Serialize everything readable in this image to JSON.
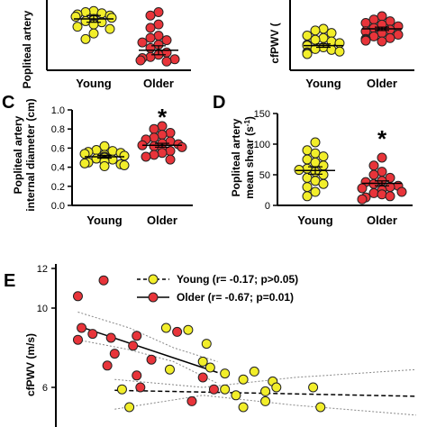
{
  "colors": {
    "young": "#f2ee2a",
    "older": "#e8343a",
    "stroke": "#222222",
    "ci": "#888888"
  },
  "chart_data": [
    {
      "type": "scatter",
      "panel": "A",
      "ylabel": "Popliteal artery",
      "categories": [
        "Young",
        "Older"
      ],
      "yrange_data": [
        1.2,
        6.5
      ],
      "series": [
        {
          "name": "Young",
          "values": [
            6.0,
            5.9,
            5.8,
            5.7,
            5.6,
            5.5,
            5.4,
            5.3,
            5.2,
            5.1,
            5.0,
            4.9,
            4.8,
            4.6,
            4.4,
            4.0,
            3.5
          ]
        },
        {
          "name": "Older",
          "values": [
            5.9,
            5.6,
            4.8,
            4.5,
            3.8,
            3.6,
            3.4,
            3.2,
            3.0,
            2.7,
            2.3,
            2.1,
            1.9,
            1.8,
            1.7,
            1.6,
            1.5
          ]
        }
      ],
      "mean": [
        5.3,
        2.5
      ],
      "sem": [
        0.3,
        0.4
      ]
    },
    {
      "type": "scatter",
      "panel": "B",
      "ylabel": "cfPWV (m/s)",
      "ylabel_visible": "cfPWV (",
      "categories": [
        "Young",
        "Older"
      ],
      "yrange_data": [
        3.5,
        11
      ],
      "series": [
        {
          "name": "Young",
          "values": [
            8.0,
            7.8,
            7.5,
            7.2,
            6.9,
            6.7,
            6.5,
            6.3,
            6.1,
            6.0,
            5.8,
            5.6,
            5.5,
            5.3,
            5.2,
            5.1,
            5.0
          ]
        },
        {
          "name": "Older",
          "values": [
            9.5,
            9.1,
            8.9,
            8.7,
            8.5,
            8.3,
            8.1,
            7.9,
            7.7,
            7.5,
            7.3,
            7.1,
            6.9,
            6.8,
            6.7,
            6.6,
            6.5
          ]
        }
      ],
      "mean": [
        6.0,
        8.0
      ],
      "sem": [
        0.2,
        0.2
      ]
    },
    {
      "type": "scatter",
      "panel": "C",
      "ylabel": [
        "Popliteal artery",
        "internal diameter (cm)"
      ],
      "categories": [
        "Young",
        "Older"
      ],
      "ylim": [
        0.0,
        1.0
      ],
      "yticks": [
        "0.0",
        "0.2",
        "0.4",
        "0.6",
        "0.8",
        "1.0"
      ],
      "annotation": "*",
      "series": [
        {
          "name": "Young",
          "values": [
            0.62,
            0.58,
            0.57,
            0.56,
            0.55,
            0.54,
            0.53,
            0.52,
            0.51,
            0.51,
            0.5,
            0.49,
            0.48,
            0.47,
            0.46,
            0.45,
            0.44,
            0.43,
            0.42,
            0.41
          ]
        },
        {
          "name": "Older",
          "values": [
            0.83,
            0.8,
            0.76,
            0.74,
            0.71,
            0.69,
            0.67,
            0.65,
            0.64,
            0.63,
            0.62,
            0.61,
            0.59,
            0.57,
            0.55,
            0.53,
            0.51,
            0.48
          ]
        }
      ],
      "mean": [
        0.51,
        0.63
      ],
      "sem": [
        0.015,
        0.02
      ]
    },
    {
      "type": "scatter",
      "panel": "D",
      "ylabel": [
        "Popliteal artery",
        "mean shear (s"
      ],
      "ylabel_superscript": "-1",
      "ylabel_close": ")",
      "categories": [
        "Young",
        "Older"
      ],
      "ylim": [
        0,
        150
      ],
      "yticks": [
        "0",
        "50",
        "100",
        "150"
      ],
      "annotation": "*",
      "series": [
        {
          "name": "Young",
          "values": [
            103,
            90,
            85,
            80,
            75,
            70,
            65,
            60,
            58,
            55,
            50,
            45,
            40,
            35,
            30,
            22,
            15
          ]
        },
        {
          "name": "Older",
          "values": [
            78,
            65,
            55,
            50,
            45,
            40,
            38,
            35,
            32,
            30,
            28,
            25,
            22,
            20,
            18,
            15,
            13,
            10
          ]
        }
      ],
      "mean": [
        57,
        36
      ],
      "sem": [
        6,
        4
      ]
    },
    {
      "type": "scatter",
      "panel": "E",
      "ylabel": "cfPWV (m/s)",
      "yticks": [
        "12",
        "10",
        "6"
      ],
      "legend": [
        {
          "label": "Young (r= -0.17; p>0.05)",
          "series": "Young",
          "line": "dashed"
        },
        {
          "label": "Older (r= -0.67; p=0.01)",
          "series": "Older",
          "line": "solid"
        }
      ],
      "y_data_range": [
        4.5,
        12
      ],
      "x_data_range": [
        0,
        10
      ],
      "series": [
        {
          "name": "Young",
          "points": [
            [
              3.0,
              9.0
            ],
            [
              3.6,
              8.9
            ],
            [
              4.1,
              8.2
            ],
            [
              4.0,
              7.3
            ],
            [
              4.2,
              7.0
            ],
            [
              3.1,
              6.9
            ],
            [
              4.6,
              6.7
            ],
            [
              5.4,
              6.8
            ],
            [
              5.1,
              6.4
            ],
            [
              5.7,
              5.8
            ],
            [
              5.9,
              6.3
            ],
            [
              6.0,
              6.0
            ],
            [
              4.6,
              5.9
            ],
            [
              4.9,
              5.6
            ],
            [
              7.0,
              6.0
            ],
            [
              1.8,
              5.9
            ],
            [
              5.1,
              5.0
            ],
            [
              5.7,
              5.3
            ],
            [
              7.2,
              5.0
            ],
            [
              2.0,
              5.0
            ]
          ]
        },
        {
          "name": "Older",
          "points": [
            [
              0.6,
              10.6
            ],
            [
              1.3,
              11.4
            ],
            [
              0.7,
              9.0
            ],
            [
              1.0,
              8.7
            ],
            [
              0.6,
              8.4
            ],
            [
              1.5,
              8.5
            ],
            [
              2.2,
              8.6
            ],
            [
              2.1,
              8.1
            ],
            [
              3.3,
              8.8
            ],
            [
              1.6,
              7.7
            ],
            [
              2.6,
              7.4
            ],
            [
              1.4,
              7.1
            ],
            [
              2.2,
              6.6
            ],
            [
              2.3,
              6.0
            ],
            [
              4.0,
              6.5
            ],
            [
              4.3,
              5.9
            ],
            [
              3.7,
              5.3
            ]
          ]
        }
      ],
      "fits": [
        {
          "series": "Young",
          "x": [
            1.6,
            9.8
          ],
          "y": [
            5.85,
            5.55
          ]
        },
        {
          "series": "Older",
          "x": [
            0.6,
            4.4
          ],
          "y": [
            9.1,
            6.75
          ]
        }
      ],
      "ci_bands": [
        {
          "series": "Older",
          "upper": [
            [
              0.6,
              9.8
            ],
            [
              2.0,
              9.0
            ],
            [
              3.2,
              8.0
            ],
            [
              4.4,
              7.3
            ]
          ],
          "lower": [
            [
              0.6,
              8.4
            ],
            [
              2.0,
              7.9
            ],
            [
              3.2,
              7.3
            ],
            [
              4.4,
              6.2
            ]
          ]
        },
        {
          "series": "Young",
          "upper": [
            [
              1.6,
              6.4
            ],
            [
              4.0,
              6.0
            ],
            [
              6.5,
              6.5
            ],
            [
              9.8,
              6.9
            ]
          ],
          "lower": [
            [
              1.6,
              4.9
            ],
            [
              4.0,
              5.6
            ],
            [
              6.5,
              5.1
            ],
            [
              9.8,
              4.6
            ]
          ]
        }
      ]
    }
  ]
}
